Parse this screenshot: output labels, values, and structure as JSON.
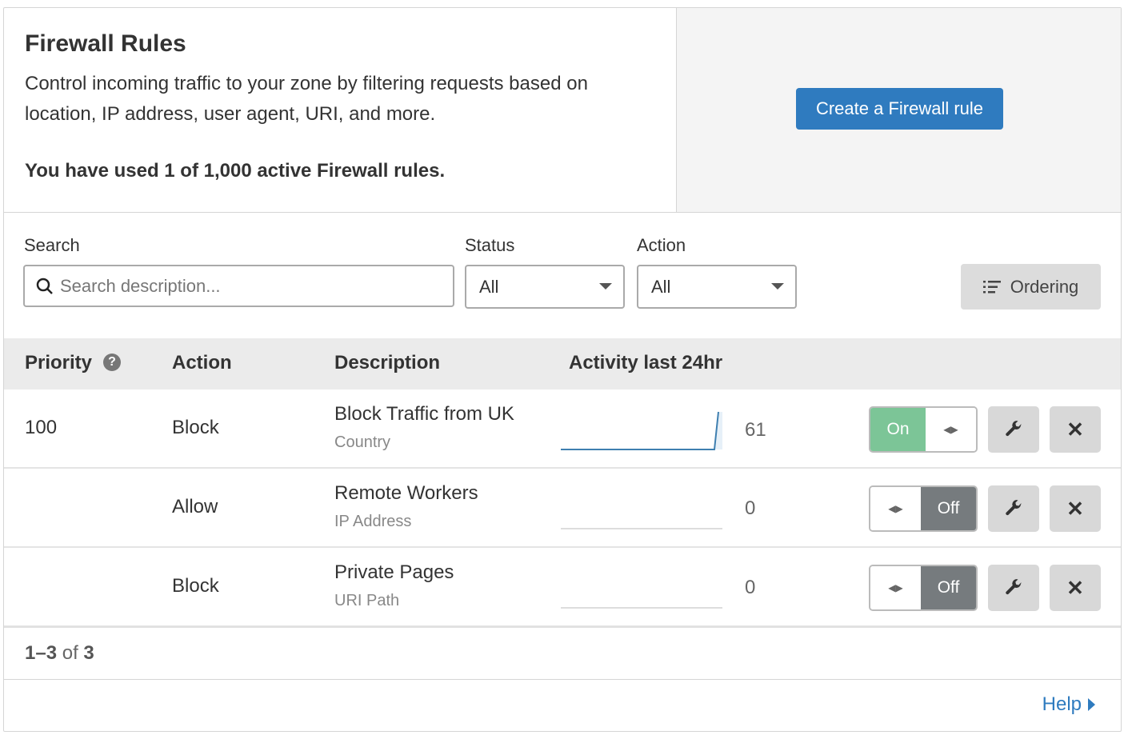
{
  "header": {
    "title": "Firewall Rules",
    "description": "Control incoming traffic to your zone by filtering requests based on location, IP address, user agent, URI, and more.",
    "usage": "You have used 1 of 1,000 active Firewall rules.",
    "create_label": "Create a Firewall rule"
  },
  "filters": {
    "search_label": "Search",
    "search_placeholder": "Search description...",
    "search_value": "",
    "status_label": "Status",
    "status_value": "All",
    "action_label": "Action",
    "action_value": "All",
    "ordering_label": "Ordering"
  },
  "table": {
    "columns": [
      "Priority",
      "Action",
      "Description",
      "Activity last 24hr"
    ],
    "rows": [
      {
        "priority": "100",
        "action": "Block",
        "description": "Block Traffic from UK",
        "type": "Country",
        "count": "61",
        "enabled": true,
        "toggle_label": "On"
      },
      {
        "priority": "",
        "action": "Allow",
        "description": "Remote Workers",
        "type": "IP Address",
        "count": "0",
        "enabled": false,
        "toggle_label": "Off"
      },
      {
        "priority": "",
        "action": "Block",
        "description": "Private Pages",
        "type": "URI Path",
        "count": "0",
        "enabled": false,
        "toggle_label": "Off"
      }
    ]
  },
  "pagination": {
    "range": "1–3",
    "of": "of",
    "total": "3"
  },
  "help_label": "Help",
  "colors": {
    "primary": "#2f7bbf",
    "on": "#7cc597",
    "off": "#767b7e"
  }
}
